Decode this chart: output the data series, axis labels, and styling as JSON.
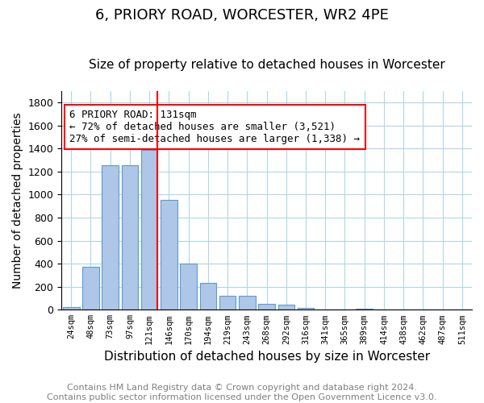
{
  "title1": "6, PRIORY ROAD, WORCESTER, WR2 4PE",
  "title2": "Size of property relative to detached houses in Worcester",
  "xlabel": "Distribution of detached houses by size in Worcester",
  "ylabel": "Number of detached properties",
  "annotation_line1": "6 PRIORY ROAD: 131sqm",
  "annotation_line2": "← 72% of detached houses are smaller (3,521)",
  "annotation_line3": "27% of semi-detached houses are larger (1,338) →",
  "bins": [
    "24sqm",
    "48sqm",
    "73sqm",
    "97sqm",
    "121sqm",
    "146sqm",
    "170sqm",
    "194sqm",
    "219sqm",
    "243sqm",
    "268sqm",
    "292sqm",
    "316sqm",
    "341sqm",
    "365sqm",
    "389sqm",
    "414sqm",
    "438sqm",
    "462sqm",
    "487sqm",
    "511sqm"
  ],
  "values": [
    20,
    375,
    1255,
    1255,
    1390,
    955,
    400,
    230,
    120,
    120,
    50,
    42,
    15,
    5,
    2,
    10,
    2,
    0,
    0,
    0,
    0
  ],
  "bar_color": "#aec6e8",
  "bar_edge_color": "#5b9bd5",
  "ylim": [
    0,
    1900
  ],
  "yticks": [
    0,
    200,
    400,
    600,
    800,
    1000,
    1200,
    1400,
    1600,
    1800
  ],
  "footer1": "Contains HM Land Registry data © Crown copyright and database right 2024.",
  "footer2": "Contains public sector information licensed under the Open Government Licence v3.0.",
  "title1_fontsize": 13,
  "title2_fontsize": 11,
  "annotation_fontsize": 9,
  "xlabel_fontsize": 11,
  "ylabel_fontsize": 10,
  "footer_fontsize": 8
}
